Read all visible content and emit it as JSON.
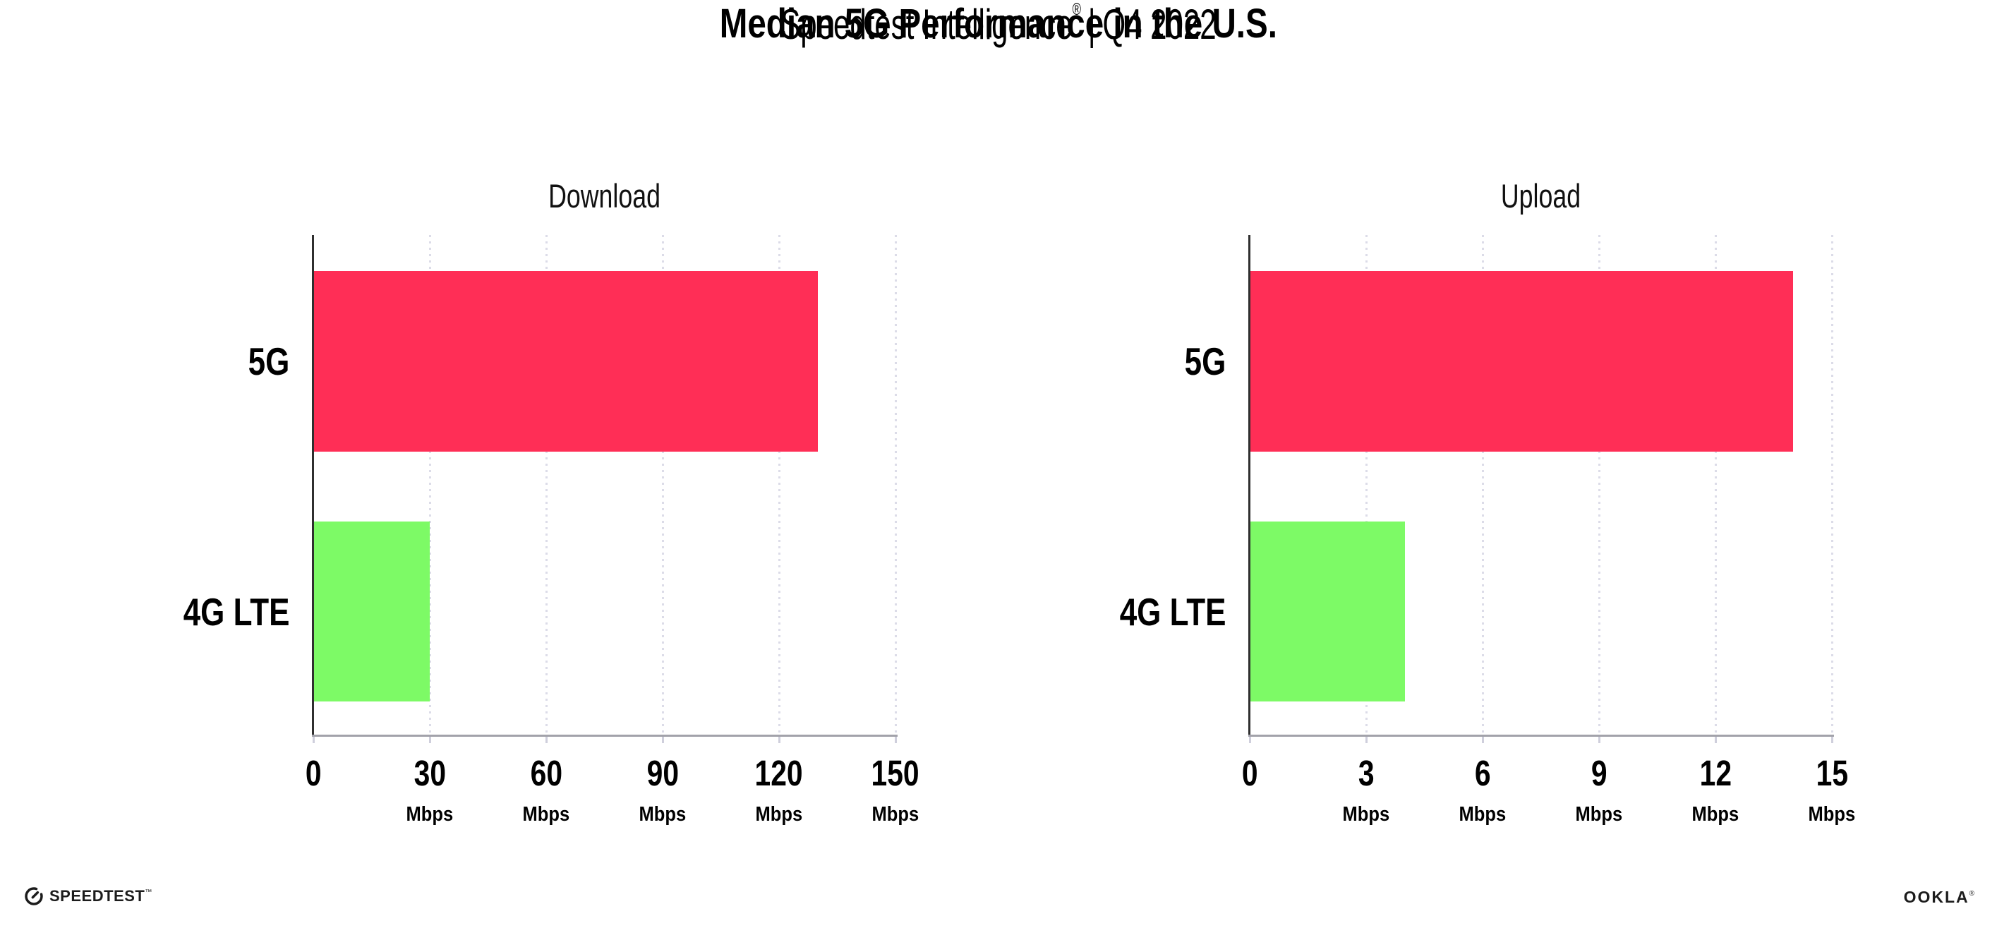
{
  "header": {
    "title": "Median 5G Performance in the U.S.",
    "subtitle_brand": "Speedtest Intelligence",
    "subtitle_reg": "®",
    "subtitle_separator": "|",
    "subtitle_period": "Q4 2022"
  },
  "footer": {
    "speedtest_icon": "gauge-icon",
    "speedtest_label": "SPEEDTEST",
    "speedtest_mark": "™",
    "ookla_label": "OOKLA",
    "ookla_mark": "®"
  },
  "colors": {
    "bar_5g": "#FF2E56",
    "bar_4g_lte": "#7DFA66",
    "gridline": "#DCDCE8",
    "x_axis": "#A2A2AA",
    "y_axis": "#2F2F2F",
    "text": "#000000"
  },
  "chart_data": [
    {
      "type": "bar",
      "orientation": "horizontal",
      "title": "Download",
      "categories": [
        "5G",
        "4G LTE"
      ],
      "values": [
        130,
        30
      ],
      "unit": "Mbps",
      "xlim": [
        0,
        150
      ],
      "xticks": [
        0,
        30,
        60,
        90,
        120,
        150
      ],
      "grid": "vertical-dotted",
      "legend": "none",
      "bar_colors": [
        "#FF2E56",
        "#7DFA66"
      ]
    },
    {
      "type": "bar",
      "orientation": "horizontal",
      "title": "Upload",
      "categories": [
        "5G",
        "4G LTE"
      ],
      "values": [
        14,
        4
      ],
      "unit": "Mbps",
      "xlim": [
        0,
        15
      ],
      "xticks": [
        0,
        3,
        6,
        9,
        12,
        15
      ],
      "grid": "vertical-dotted",
      "legend": "none",
      "bar_colors": [
        "#FF2E56",
        "#7DFA66"
      ]
    }
  ]
}
